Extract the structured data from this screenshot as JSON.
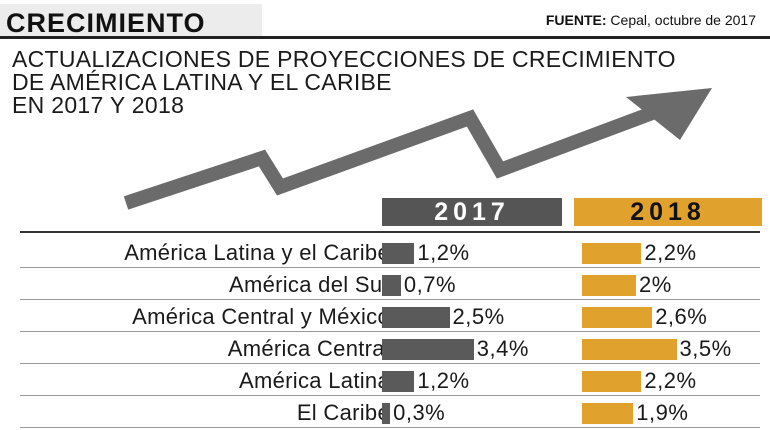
{
  "header": {
    "badge": "CRECIMIENTO",
    "source_label": "FUENTE:",
    "source_text": " Cepal, octubre de 2017"
  },
  "title_lines": [
    "ACTUALIZACIONES DE PROYECCIONES DE CRECIMIENTO",
    "DE AMÉRICA LATINA Y EL CARIBE",
    "EN 2017 Y 2018"
  ],
  "colors": {
    "series_2017": "#5a5a5a",
    "series_2018": "#e0a22d",
    "arrow": "#6b6b6b"
  },
  "chart_data": {
    "type": "bar",
    "title": "ACTUALIZACIONES DE PROYECCIONES DE CRECIMIENTO DE AMÉRICA LATINA Y EL CARIBE EN 2017 Y 2018",
    "categories": [
      "América Latina y el Caribe",
      "América del Sur",
      "América Central y México",
      "América Central",
      "América Latina",
      "El Caribe"
    ],
    "series": [
      {
        "name": "2017",
        "values": [
          1.2,
          0.7,
          2.5,
          3.4,
          1.2,
          0.3
        ],
        "labels": [
          "1,2%",
          "0,7%",
          "2,5%",
          "3,4%",
          "1,2%",
          "0,3%"
        ]
      },
      {
        "name": "2018",
        "values": [
          2.2,
          2.0,
          2.6,
          3.5,
          2.2,
          1.9
        ],
        "labels": [
          "2,2%",
          "2%",
          "2,6%",
          "3,5%",
          "2,2%",
          "1,9%"
        ]
      }
    ],
    "xlim": [
      0,
      3.5
    ],
    "unit": "%"
  }
}
